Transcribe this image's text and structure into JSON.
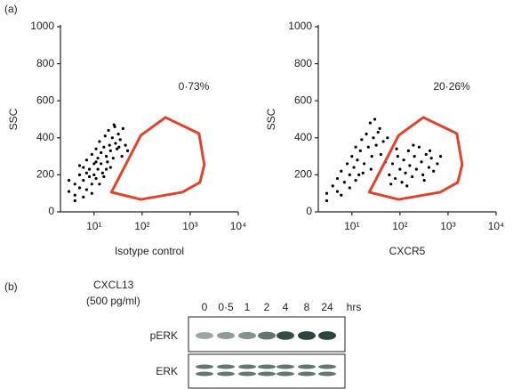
{
  "panel_a_label": "(a)",
  "chart_data": [
    {
      "type": "scatter",
      "xlabel": "Isotype control",
      "ylabel": "SSC",
      "annotation": "0·73%",
      "xscale": "log",
      "xlim": [
        2,
        10000
      ],
      "ylim": [
        0,
        1000
      ],
      "xticks": [
        {
          "value": 10,
          "label": "10¹"
        },
        {
          "value": 100,
          "label": "10²"
        },
        {
          "value": 1000,
          "label": "10³"
        },
        {
          "value": 10000,
          "label": "10⁴"
        }
      ],
      "yticks": [
        0,
        200,
        400,
        600,
        800,
        1000
      ],
      "color": "#000000",
      "x": [
        3,
        4,
        4,
        5,
        5,
        6,
        6,
        7,
        7,
        8,
        8,
        9,
        9,
        10,
        10,
        11,
        11,
        12,
        12,
        13,
        14,
        14,
        15,
        16,
        17,
        18,
        19,
        20,
        21,
        22,
        24,
        25,
        27,
        28,
        30,
        32,
        35,
        38,
        40,
        45,
        50,
        4,
        3,
        6,
        9,
        13,
        16,
        22,
        26,
        33,
        7,
        11,
        18,
        5
      ],
      "values": [
        110,
        150,
        90,
        200,
        130,
        170,
        240,
        120,
        280,
        190,
        230,
        150,
        310,
        260,
        200,
        340,
        180,
        290,
        230,
        380,
        260,
        320,
        210,
        350,
        410,
        300,
        270,
        440,
        360,
        330,
        400,
        290,
        460,
        370,
        340,
        420,
        390,
        300,
        450,
        360,
        330,
        60,
        170,
        80,
        100,
        150,
        190,
        240,
        470,
        350,
        210,
        270,
        230,
        250
      ],
      "gate": {
        "x": [
          23,
          94,
          306,
          1524,
          1968,
          1592,
          684,
          94
        ],
        "y": [
          106,
          413,
          510,
          423,
          255,
          159,
          106,
          67
        ],
        "color": "#e0432b"
      }
    },
    {
      "type": "scatter",
      "xlabel": "CXCR5",
      "ylabel": "SSC",
      "annotation": "20·26%",
      "xscale": "log",
      "xlim": [
        2,
        10000
      ],
      "ylim": [
        0,
        1000
      ],
      "xticks": [
        {
          "value": 10,
          "label": "10¹"
        },
        {
          "value": 100,
          "label": "10²"
        },
        {
          "value": 1000,
          "label": "10³"
        },
        {
          "value": 10000,
          "label": "10⁴"
        }
      ],
      "yticks": [
        0,
        200,
        400,
        600,
        800,
        1000
      ],
      "color": "#000000",
      "x": [
        3,
        4,
        5,
        5,
        6,
        7,
        8,
        9,
        10,
        11,
        12,
        13,
        14,
        15,
        16,
        18,
        20,
        22,
        24,
        26,
        28,
        30,
        32,
        35,
        40,
        45,
        50,
        3,
        6,
        9,
        12,
        17,
        25,
        38,
        55,
        60,
        70,
        80,
        90,
        100,
        110,
        120,
        130,
        150,
        160,
        180,
        200,
        220,
        250,
        280,
        300,
        350,
        400,
        450,
        500,
        600,
        700,
        140,
        85,
        65,
        320,
        190,
        420
      ],
      "values": [
        100,
        140,
        180,
        110,
        220,
        160,
        260,
        200,
        300,
        240,
        350,
        280,
        200,
        330,
        390,
        260,
        420,
        350,
        480,
        300,
        400,
        500,
        360,
        430,
        310,
        380,
        270,
        60,
        90,
        130,
        170,
        210,
        230,
        450,
        400,
        200,
        260,
        180,
        300,
        230,
        160,
        280,
        210,
        330,
        250,
        190,
        300,
        230,
        350,
        270,
        200,
        310,
        240,
        290,
        220,
        260,
        300,
        140,
        340,
        150,
        170,
        360,
        330
      ],
      "gate": {
        "x": [
          23,
          94,
          306,
          1524,
          1968,
          1592,
          684,
          94
        ],
        "y": [
          106,
          413,
          510,
          423,
          255,
          159,
          106,
          67
        ],
        "color": "#e0432b"
      }
    }
  ],
  "panel_b": {
    "label": "(b)",
    "treatment": "CXCL13",
    "dose": "(500 pg/ml)",
    "times": [
      "0",
      "0·5",
      "1",
      "2",
      "4",
      "8",
      "24"
    ],
    "time_unit": "hrs",
    "rows": [
      "pERK",
      "ERK"
    ]
  }
}
